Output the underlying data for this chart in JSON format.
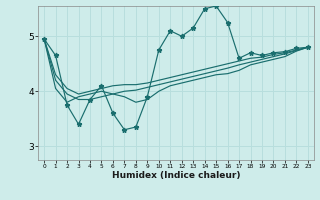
{
  "xlabel": "Humidex (Indice chaleur)",
  "bg_color": "#ceecea",
  "grid_color": "#b8dedd",
  "line_color": "#1a6e6e",
  "xlim": [
    -0.5,
    23.5
  ],
  "ylim": [
    2.75,
    5.55
  ],
  "yticks": [
    3,
    4,
    5
  ],
  "xtick_labels": [
    "0",
    "1",
    "2",
    "3",
    "4",
    "5",
    "6",
    "7",
    "8",
    "9",
    "10",
    "11",
    "12",
    "13",
    "14",
    "15",
    "16",
    "17",
    "18",
    "19",
    "20",
    "21",
    "22",
    "23"
  ],
  "series": [
    [
      4.95,
      4.65,
      3.75,
      3.4,
      3.85,
      4.1,
      3.6,
      3.3,
      3.35,
      3.9,
      4.75,
      5.1,
      5.0,
      5.15,
      5.5,
      5.55,
      5.25,
      4.6,
      4.7,
      4.65,
      4.7,
      4.72,
      4.78,
      4.8
    ],
    [
      4.95,
      4.3,
      4.05,
      3.95,
      4.0,
      4.05,
      4.1,
      4.12,
      4.12,
      4.15,
      4.2,
      4.25,
      4.3,
      4.35,
      4.4,
      4.45,
      4.5,
      4.55,
      4.6,
      4.62,
      4.67,
      4.7,
      4.75,
      4.8
    ],
    [
      4.95,
      4.05,
      3.8,
      3.9,
      3.95,
      4.0,
      3.95,
      3.9,
      3.8,
      3.85,
      4.0,
      4.1,
      4.15,
      4.2,
      4.25,
      4.3,
      4.32,
      4.38,
      4.48,
      4.53,
      4.58,
      4.63,
      4.73,
      4.8
    ],
    [
      4.95,
      4.2,
      3.95,
      3.85,
      3.85,
      3.9,
      3.95,
      4.0,
      4.02,
      4.07,
      4.12,
      4.17,
      4.22,
      4.27,
      4.32,
      4.37,
      4.42,
      4.48,
      4.53,
      4.58,
      4.63,
      4.68,
      4.74,
      4.8
    ]
  ]
}
